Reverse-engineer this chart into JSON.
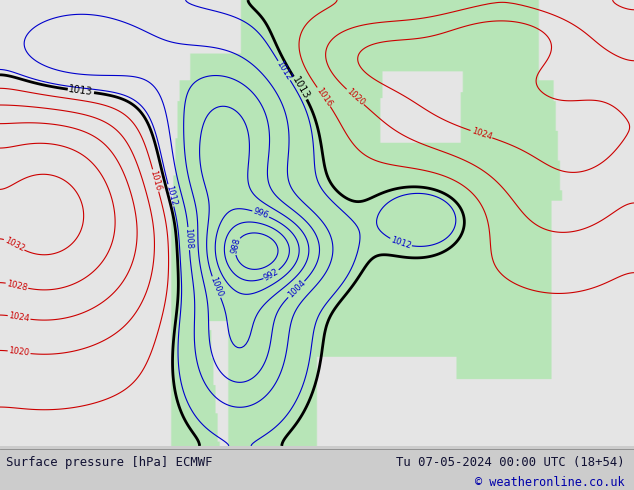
{
  "title_left": "Surface pressure [hPa] ECMWF",
  "title_right": "Tu 07-05-2024 00:00 UTC (18+54)",
  "copyright": "© weatheronline.co.uk",
  "land_color_rgb": [
    0.72,
    0.9,
    0.72
  ],
  "ocean_color_rgb": [
    0.9,
    0.9,
    0.9
  ],
  "blue_color": "#0000cc",
  "red_color": "#cc0000",
  "black_color": "#000000",
  "bottom_bg": "#ffffff",
  "fig_bg": "#cccccc",
  "figsize": [
    6.34,
    4.9
  ],
  "dpi": 100
}
